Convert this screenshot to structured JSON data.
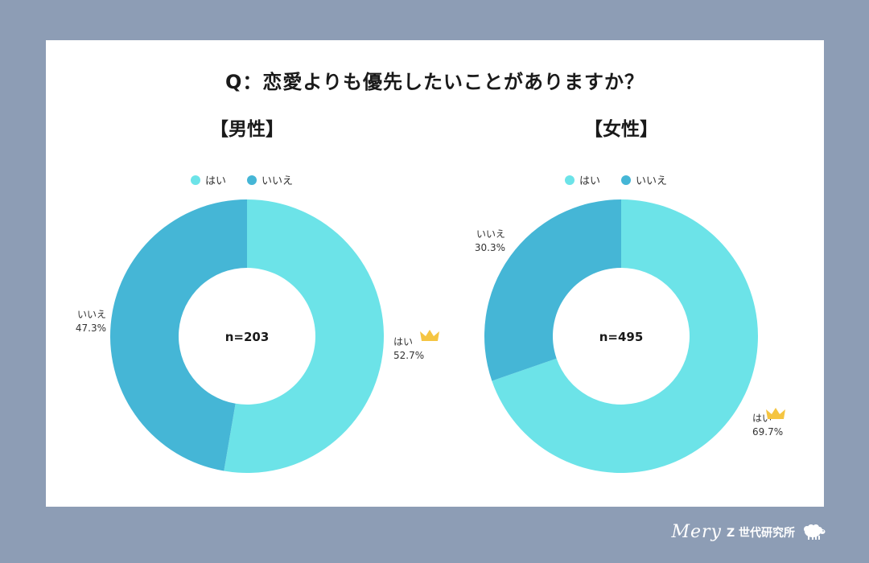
{
  "title": "Q：恋愛よりも優先したいことがありますか？",
  "footer": {
    "brand_script": "Mery",
    "brand_text": "Z 世代研究所",
    "icon": "sheep-icon"
  },
  "colors": {
    "background": "#8d9db5",
    "hai": "#6ce3e8",
    "iie": "#45b6d6",
    "crown": "#f5c542"
  },
  "chart_data": [
    {
      "type": "pie",
      "title": "【男性】",
      "center_label": "n=203",
      "legend": [
        "はい",
        "いいえ"
      ],
      "slices": [
        {
          "name": "はい",
          "value": 52.7,
          "label": "52.7%",
          "crown": true
        },
        {
          "name": "いいえ",
          "value": 47.3,
          "label": "47.3%",
          "crown": false
        }
      ]
    },
    {
      "type": "pie",
      "title": "【女性】",
      "center_label": "n=495",
      "legend": [
        "はい",
        "いいえ"
      ],
      "slices": [
        {
          "name": "はい",
          "value": 69.7,
          "label": "69.7%",
          "crown": true
        },
        {
          "name": "いいえ",
          "value": 30.3,
          "label": "30.3%",
          "crown": false
        }
      ]
    }
  ]
}
